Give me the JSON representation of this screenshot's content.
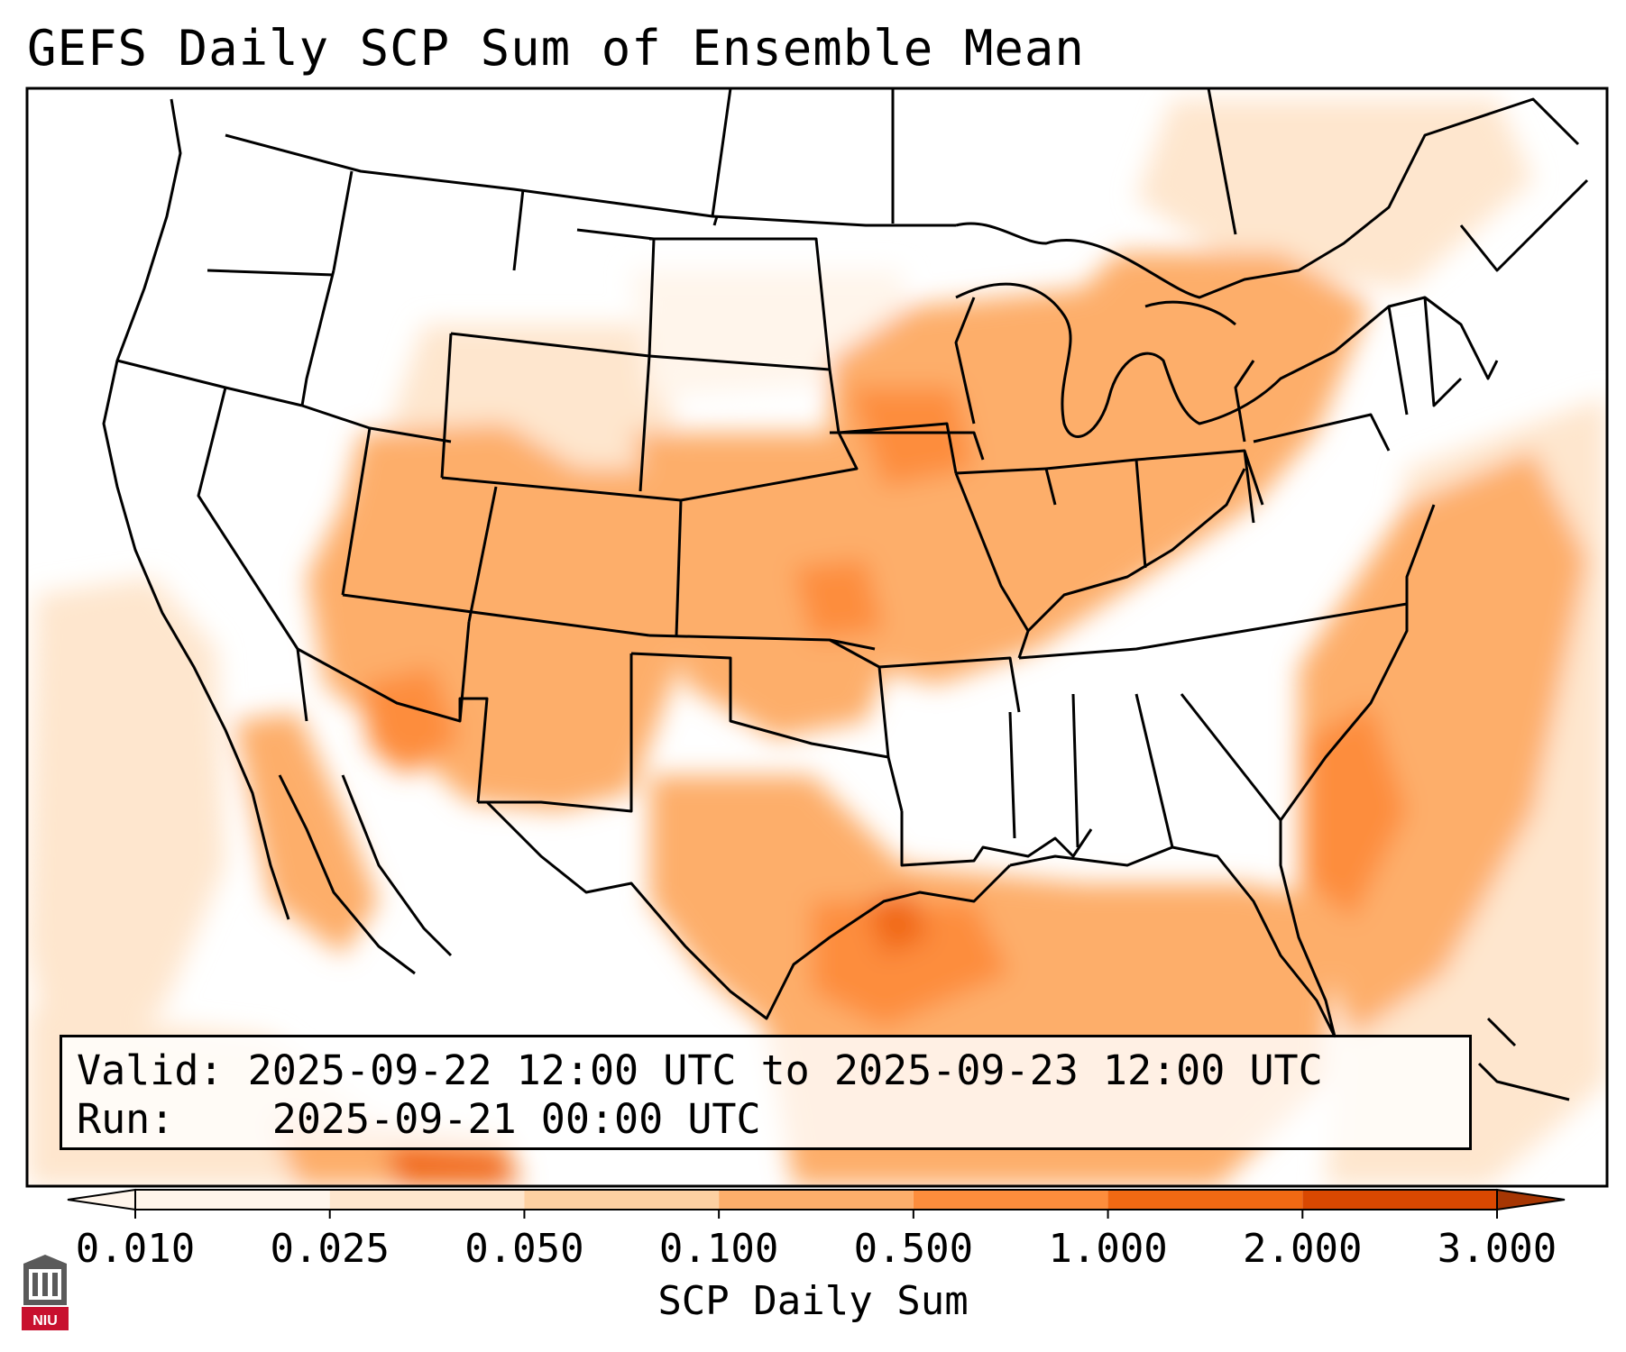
{
  "title": "GEFS Daily SCP Sum of Ensemble Mean",
  "info": {
    "valid_label": "Valid:",
    "valid_value": "2025-09-22 12:00 UTC to 2025-09-23 12:00 UTC",
    "run_label": "Run:",
    "run_value": "2025-09-21 00:00 UTC"
  },
  "colorbar": {
    "label": "SCP Daily Sum",
    "ticks": [
      "0.010",
      "0.025",
      "0.050",
      "0.100",
      "0.500",
      "1.000",
      "2.000",
      "3.000"
    ],
    "colors": [
      "#fff5eb",
      "#fee6ce",
      "#fdd0a2",
      "#fdae6b",
      "#fd8d3c",
      "#f16913",
      "#d94801",
      "#a63603"
    ],
    "extend": "both"
  },
  "logo": {
    "text": "NIU",
    "color": "#c8102e"
  },
  "icons": [
    "niu-logo-icon"
  ]
}
